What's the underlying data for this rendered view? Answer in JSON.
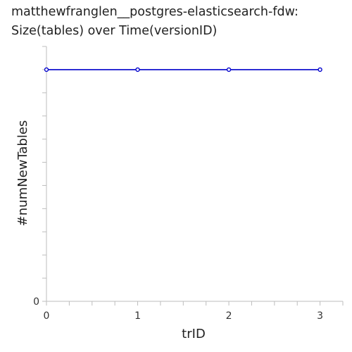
{
  "header": {
    "title_line1": "matthewfranglen__postgres-elasticsearch-fdw:",
    "title_line2": "Size(tables) over Time(versionID)"
  },
  "chart_data": {
    "type": "line",
    "title": "matthewfranglen__postgres-elasticsearch-fdw: Size(tables) over Time(versionID)",
    "xlabel": "trID",
    "ylabel": "#numNewTables",
    "x": [
      0,
      1,
      2,
      3
    ],
    "series": [
      {
        "values": [
          1,
          1,
          1,
          1
        ],
        "color": "#0000cc"
      }
    ],
    "xlim": [
      0,
      3.25
    ],
    "ylim": [
      0,
      1.1
    ],
    "x_ticks": [
      0,
      1,
      2,
      3
    ],
    "y_ticks_labeled": [
      {
        "value": 0,
        "label": "0"
      }
    ],
    "grid": false
  }
}
